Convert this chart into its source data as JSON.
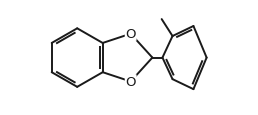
{
  "bg_color": "#ffffff",
  "line_color": "#1a1a1a",
  "line_width": 1.4,
  "O_fontsize": 9.5,
  "figsize": [
    2.58,
    1.16
  ],
  "dpi": 100,
  "xlim": [
    0,
    258
  ],
  "ylim": [
    0,
    116
  ]
}
